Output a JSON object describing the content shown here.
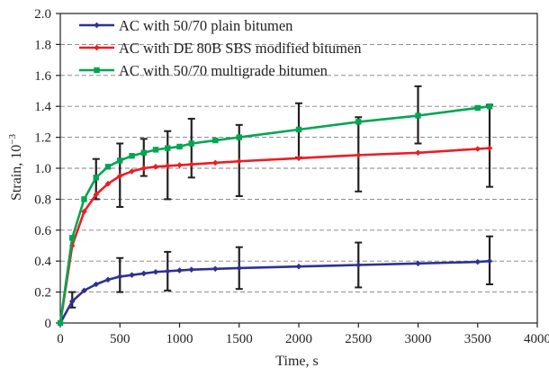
{
  "chart_data": {
    "type": "line",
    "xlabel": "Time, s",
    "ylabel": "Strain, 10",
    "ylabel_exponent": "−3",
    "xlim": [
      0,
      4000
    ],
    "ylim": [
      0,
      2.0
    ],
    "x_ticks": [
      "0",
      "500",
      "1000",
      "1500",
      "2000",
      "2500",
      "3000",
      "3500",
      "4000"
    ],
    "y_ticks": [
      "0",
      "0.2",
      "0.4",
      "0.6",
      "0.8",
      "1.0",
      "1.2",
      "1.4",
      "1.6",
      "1.8",
      "2.0"
    ],
    "grid": "horizontal dashed",
    "legend_position": "top-left",
    "series": [
      {
        "name": "AC with 50/70 plain bitumen",
        "color": "#2e3192",
        "marker": "diamond",
        "x": [
          0,
          100,
          200,
          300,
          400,
          500,
          600,
          700,
          800,
          900,
          1000,
          1100,
          1300,
          1500,
          2000,
          2500,
          3000,
          3500,
          3600
        ],
        "y": [
          0,
          0.14,
          0.21,
          0.25,
          0.28,
          0.3,
          0.31,
          0.32,
          0.33,
          0.335,
          0.34,
          0.345,
          0.35,
          0.355,
          0.365,
          0.375,
          0.385,
          0.395,
          0.4
        ],
        "error_bars": [
          {
            "x": 100,
            "low": 0.1,
            "high": 0.2
          },
          {
            "x": 500,
            "low": 0.2,
            "high": 0.42
          },
          {
            "x": 900,
            "low": 0.21,
            "high": 0.46
          },
          {
            "x": 1500,
            "low": 0.22,
            "high": 0.49
          },
          {
            "x": 2500,
            "low": 0.23,
            "high": 0.52
          },
          {
            "x": 3600,
            "low": 0.25,
            "high": 0.56
          }
        ]
      },
      {
        "name": "AC with DE 80B SBS modified bitumen",
        "color": "#ed1c24",
        "marker": "diamond",
        "x": [
          0,
          100,
          200,
          300,
          400,
          500,
          600,
          700,
          800,
          900,
          1000,
          1100,
          1300,
          1500,
          2000,
          2500,
          3000,
          3500,
          3600
        ],
        "y": [
          0,
          0.5,
          0.72,
          0.83,
          0.9,
          0.95,
          0.98,
          1.0,
          1.01,
          1.015,
          1.02,
          1.025,
          1.035,
          1.045,
          1.065,
          1.085,
          1.1,
          1.125,
          1.13
        ],
        "error_bars": [
          {
            "x": 300,
            "low": 0.8,
            "high": 1.06
          },
          {
            "x": 500,
            "low": 0.75,
            "high": 1.16
          },
          {
            "x": 700,
            "low": 0.95,
            "high": 1.19
          },
          {
            "x": 900,
            "low": 0.8,
            "high": 1.24
          },
          {
            "x": 1100,
            "low": 0.94,
            "high": 1.32
          },
          {
            "x": 1500,
            "low": 0.82,
            "high": 1.28
          },
          {
            "x": 2000,
            "low": 1.07,
            "high": 1.42
          },
          {
            "x": 2500,
            "low": 0.85,
            "high": 1.33
          },
          {
            "x": 3000,
            "low": 1.16,
            "high": 1.53
          },
          {
            "x": 3600,
            "low": 0.88,
            "high": 1.41
          }
        ]
      },
      {
        "name": "AC with 50/70 multigrade bitumen",
        "color": "#00a651",
        "marker": "square",
        "x": [
          0,
          100,
          200,
          300,
          400,
          500,
          600,
          700,
          800,
          900,
          1000,
          1100,
          1300,
          1500,
          2000,
          2500,
          3000,
          3500,
          3600
        ],
        "y": [
          0,
          0.55,
          0.8,
          0.94,
          1.01,
          1.05,
          1.08,
          1.1,
          1.12,
          1.13,
          1.14,
          1.16,
          1.18,
          1.2,
          1.25,
          1.3,
          1.34,
          1.39,
          1.4
        ],
        "error_bars": []
      }
    ]
  }
}
